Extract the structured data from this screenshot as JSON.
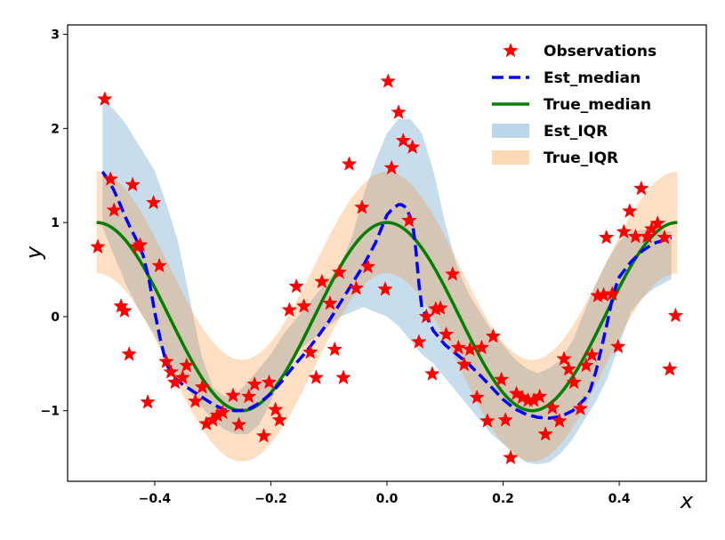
{
  "chart_data": {
    "type": "line",
    "title": "",
    "xlabel": "x",
    "ylabel": "y",
    "xlim": [
      -0.55,
      0.55
    ],
    "ylim": [
      -1.75,
      3.1
    ],
    "xticks": [
      -0.4,
      -0.2,
      0.0,
      0.2,
      0.4
    ],
    "xtick_labels": [
      "−0.4",
      "−0.2",
      "0.0",
      "0.2",
      "0.4"
    ],
    "yticks": [
      -1,
      0,
      1,
      2,
      3
    ],
    "ytick_labels": [
      "−1",
      "0",
      "1",
      "2",
      "3"
    ],
    "grid": false,
    "legend_position": "top-right",
    "legend": [
      "Observations",
      "Est_median",
      "True_median",
      "Est_IQR",
      "True_IQR"
    ],
    "colors": {
      "observations": "#ff0000",
      "est_median": "#0000ff",
      "true_median": "#008000",
      "est_iqr": "#1f77b4",
      "true_iqr": "#ff7f0e"
    },
    "series": [
      {
        "name": "Observations",
        "kind": "scatter",
        "points": [
          [
            -0.498,
            0.74
          ],
          [
            -0.486,
            2.31
          ],
          [
            -0.476,
            1.46
          ],
          [
            -0.47,
            1.13
          ],
          [
            -0.458,
            0.11
          ],
          [
            -0.452,
            0.06
          ],
          [
            -0.444,
            -0.4
          ],
          [
            -0.438,
            1.4
          ],
          [
            -0.43,
            0.74
          ],
          [
            -0.425,
            0.76
          ],
          [
            -0.412,
            -0.91
          ],
          [
            -0.402,
            1.21
          ],
          [
            -0.392,
            0.54
          ],
          [
            -0.38,
            -0.48
          ],
          [
            -0.372,
            -0.59
          ],
          [
            -0.365,
            -0.7
          ],
          [
            -0.352,
            -0.65
          ],
          [
            -0.345,
            -0.52
          ],
          [
            -0.33,
            -0.9
          ],
          [
            -0.318,
            -0.75
          ],
          [
            -0.311,
            -1.14
          ],
          [
            -0.3,
            -1.1
          ],
          [
            -0.292,
            -1.05
          ],
          [
            -0.283,
            -1.02
          ],
          [
            -0.265,
            -0.84
          ],
          [
            -0.255,
            -1.15
          ],
          [
            -0.238,
            -0.85
          ],
          [
            -0.228,
            -0.72
          ],
          [
            -0.212,
            -1.27
          ],
          [
            -0.203,
            -0.7
          ],
          [
            -0.192,
            -0.99
          ],
          [
            -0.185,
            -1.1
          ],
          [
            -0.168,
            0.07
          ],
          [
            -0.156,
            0.32
          ],
          [
            -0.143,
            0.11
          ],
          [
            -0.132,
            -0.38
          ],
          [
            -0.122,
            -0.65
          ],
          [
            -0.112,
            0.37
          ],
          [
            -0.098,
            0.14
          ],
          [
            -0.09,
            -0.35
          ],
          [
            -0.082,
            0.47
          ],
          [
            -0.075,
            -0.65
          ],
          [
            -0.065,
            1.62
          ],
          [
            -0.053,
            0.3
          ],
          [
            -0.043,
            1.16
          ],
          [
            -0.033,
            0.53
          ],
          [
            -0.003,
            0.29
          ],
          [
            0.002,
            2.5
          ],
          [
            0.008,
            1.58
          ],
          [
            0.02,
            2.17
          ],
          [
            0.028,
            1.87
          ],
          [
            0.038,
            1.02
          ],
          [
            0.044,
            1.8
          ],
          [
            0.055,
            -0.27
          ],
          [
            0.068,
            0.0
          ],
          [
            0.078,
            -0.61
          ],
          [
            0.084,
            0.08
          ],
          [
            0.092,
            0.09
          ],
          [
            0.102,
            -0.19
          ],
          [
            0.113,
            0.45
          ],
          [
            0.123,
            -0.33
          ],
          [
            0.133,
            -0.51
          ],
          [
            0.143,
            -0.35
          ],
          [
            0.155,
            -0.86
          ],
          [
            0.163,
            -0.33
          ],
          [
            0.173,
            -1.11
          ],
          [
            0.183,
            -0.21
          ],
          [
            0.197,
            -0.67
          ],
          [
            0.204,
            -1.1
          ],
          [
            0.213,
            -1.5
          ],
          [
            0.223,
            -0.82
          ],
          [
            0.233,
            -0.86
          ],
          [
            0.243,
            -0.89
          ],
          [
            0.253,
            -0.89
          ],
          [
            0.263,
            -0.85
          ],
          [
            0.273,
            -1.25
          ],
          [
            0.285,
            -0.97
          ],
          [
            0.297,
            -1.11
          ],
          [
            0.305,
            -0.45
          ],
          [
            0.313,
            -0.56
          ],
          [
            0.322,
            -0.7
          ],
          [
            0.333,
            -0.98
          ],
          [
            0.343,
            -0.52
          ],
          [
            0.353,
            -0.41
          ],
          [
            0.363,
            0.22
          ],
          [
            0.373,
            0.23
          ],
          [
            0.378,
            0.84
          ],
          [
            0.388,
            0.24
          ],
          [
            0.398,
            -0.32
          ],
          [
            0.408,
            0.9
          ],
          [
            0.418,
            1.12
          ],
          [
            0.428,
            0.85
          ],
          [
            0.438,
            1.36
          ],
          [
            0.448,
            0.85
          ],
          [
            0.456,
            0.93
          ],
          [
            0.466,
            0.99
          ],
          [
            0.478,
            0.84
          ],
          [
            0.487,
            -0.56
          ],
          [
            0.497,
            0.01
          ]
        ]
      },
      {
        "name": "Est_median",
        "kind": "line",
        "x": [
          -0.49,
          -0.48,
          -0.47,
          -0.46,
          -0.45,
          -0.44,
          -0.43,
          -0.42,
          -0.41,
          -0.4,
          -0.39,
          -0.38,
          -0.37,
          -0.36,
          -0.35,
          -0.34,
          -0.32,
          -0.3,
          -0.28,
          -0.26,
          -0.24,
          -0.22,
          -0.2,
          -0.18,
          -0.16,
          -0.14,
          -0.12,
          -0.1,
          -0.08,
          -0.06,
          -0.04,
          -0.02,
          0.0,
          0.01,
          0.02,
          0.025,
          0.03,
          0.035,
          0.04,
          0.045,
          0.05,
          0.055,
          0.06,
          0.08,
          0.1,
          0.12,
          0.14,
          0.16,
          0.18,
          0.2,
          0.22,
          0.24,
          0.26,
          0.28,
          0.3,
          0.32,
          0.34,
          0.35,
          0.36,
          0.37,
          0.38,
          0.39,
          0.4,
          0.42,
          0.44,
          0.46,
          0.48,
          0.49
        ],
        "y": [
          1.54,
          1.45,
          1.34,
          1.2,
          1.05,
          0.92,
          0.8,
          0.65,
          0.4,
          0.05,
          -0.25,
          -0.5,
          -0.62,
          -0.68,
          -0.73,
          -0.77,
          -0.85,
          -0.93,
          -0.99,
          -1.0,
          -0.99,
          -0.92,
          -0.82,
          -0.68,
          -0.52,
          -0.38,
          -0.22,
          -0.05,
          0.15,
          0.35,
          0.55,
          0.78,
          1.08,
          1.15,
          1.19,
          1.19,
          1.17,
          1.13,
          1.06,
          0.95,
          0.7,
          0.35,
          0.1,
          -0.15,
          -0.3,
          -0.4,
          -0.5,
          -0.62,
          -0.75,
          -0.88,
          -0.98,
          -1.04,
          -1.07,
          -1.08,
          -1.06,
          -1.0,
          -0.88,
          -0.78,
          -0.58,
          -0.32,
          -0.05,
          0.25,
          0.42,
          0.58,
          0.7,
          0.78,
          0.82,
          0.84
        ]
      },
      {
        "name": "True_median",
        "kind": "line",
        "function": "cos(4*pi*x)",
        "x_range": [
          -0.5,
          0.5
        ]
      },
      {
        "name": "Est_IQR",
        "kind": "band",
        "x": [
          -0.49,
          -0.47,
          -0.45,
          -0.43,
          -0.41,
          -0.4,
          -0.38,
          -0.36,
          -0.34,
          -0.32,
          -0.3,
          -0.28,
          -0.26,
          -0.24,
          -0.22,
          -0.2,
          -0.18,
          -0.16,
          -0.14,
          -0.12,
          -0.1,
          -0.08,
          -0.06,
          -0.04,
          -0.02,
          0.0,
          0.02,
          0.04,
          0.06,
          0.08,
          0.1,
          0.12,
          0.14,
          0.16,
          0.18,
          0.2,
          0.22,
          0.24,
          0.26,
          0.28,
          0.3,
          0.32,
          0.34,
          0.36,
          0.38,
          0.4,
          0.42,
          0.44,
          0.46,
          0.49
        ],
        "upper": [
          2.3,
          2.2,
          2.05,
          1.85,
          1.65,
          1.55,
          1.2,
          0.8,
          0.2,
          -0.4,
          -0.75,
          -0.85,
          -0.82,
          -0.7,
          -0.55,
          -0.4,
          -0.2,
          -0.05,
          0.1,
          0.25,
          0.4,
          0.55,
          0.85,
          1.3,
          1.65,
          1.95,
          2.1,
          2.1,
          1.95,
          1.55,
          1.0,
          0.55,
          0.25,
          0.05,
          -0.15,
          -0.3,
          -0.45,
          -0.55,
          -0.6,
          -0.55,
          -0.45,
          -0.25,
          0.05,
          0.35,
          0.6,
          0.8,
          0.9,
          0.92,
          0.93,
          0.9
        ],
        "lower": [
          0.95,
          0.65,
          0.35,
          0.1,
          -0.1,
          -0.2,
          -0.45,
          -0.6,
          -0.8,
          -0.95,
          -1.1,
          -1.2,
          -1.25,
          -1.25,
          -1.15,
          -0.9,
          -0.6,
          -0.4,
          -0.3,
          -0.2,
          -0.1,
          0.0,
          0.05,
          0.1,
          0.05,
          0.0,
          -0.1,
          -0.25,
          -0.4,
          -0.5,
          -0.65,
          -0.8,
          -0.95,
          -1.1,
          -1.25,
          -1.35,
          -1.45,
          -1.55,
          -1.57,
          -1.55,
          -1.45,
          -1.3,
          -1.1,
          -0.9,
          -0.65,
          -0.3,
          0.05,
          0.2,
          0.3,
          0.4
        ]
      },
      {
        "name": "True_IQR",
        "kind": "band",
        "function_center": "cos(4*pi*x)",
        "x_range": [
          -0.5,
          0.5
        ],
        "half_width_start": 0.54,
        "half_width_end": 0.54
      }
    ]
  }
}
